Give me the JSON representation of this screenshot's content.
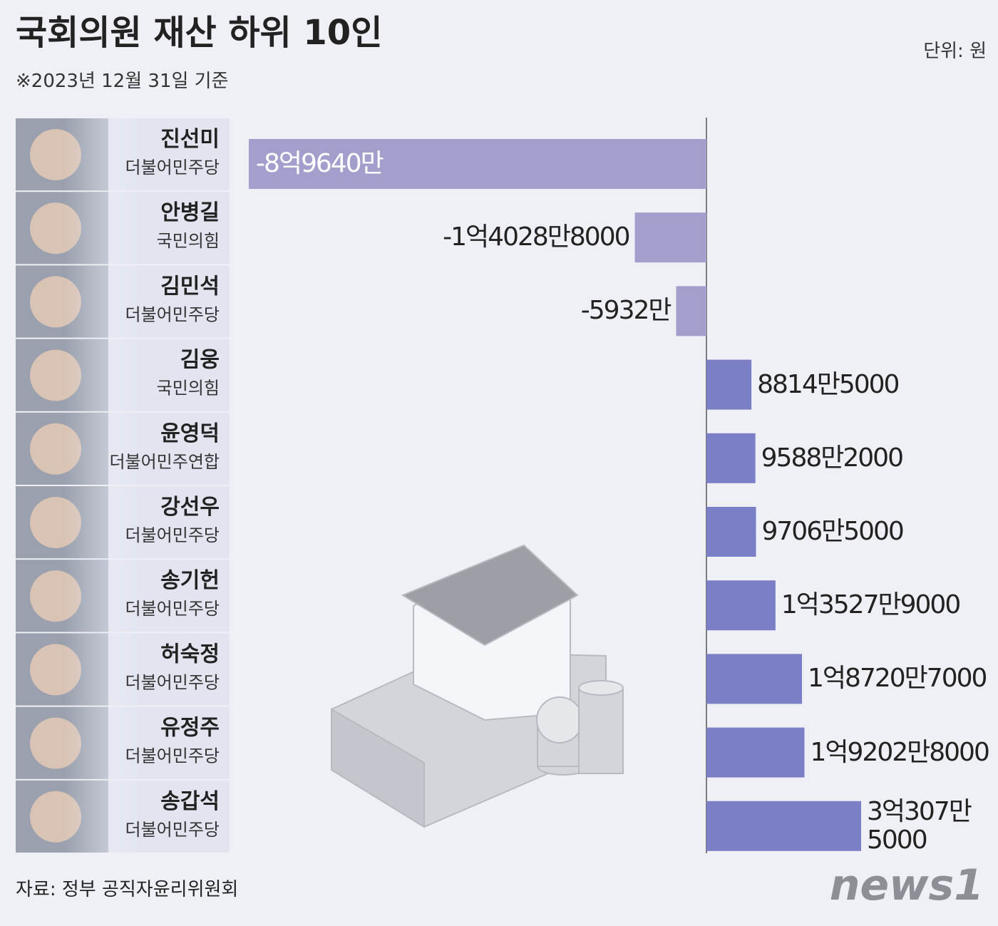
{
  "chart_data": {
    "type": "bar",
    "orientation": "horizontal",
    "title": "국회의원 재산 하위 10인",
    "subtitle": "※2023년 12월 31일 기준",
    "unit": "단위: 원",
    "source": "자료: 정부 공직자윤리위원회",
    "categories": [
      "진선미",
      "안병길",
      "김민석",
      "김웅",
      "윤영덕",
      "강선우",
      "송기헌",
      "허숙정",
      "유정주",
      "송갑석"
    ],
    "parties": [
      "더불어민주당",
      "국민의힘",
      "더불어민주당",
      "국민의힘",
      "더불어민주연합",
      "더불어민주당",
      "더불어민주당",
      "더불어민주당",
      "더불어민주당",
      "더불어민주당"
    ],
    "values": [
      -896400000,
      -140288000,
      -59320000,
      88145000,
      95882000,
      97065000,
      135279000,
      187207000,
      192028000,
      303075000
    ],
    "value_labels": [
      "-8억9640만",
      "-1억4028만8000",
      "-5932만",
      "8814만5000",
      "9588만2000",
      "9706만5000",
      "1억3527만9000",
      "1억8720만7000",
      "1억9202만8000",
      "3억307만5000"
    ],
    "colors": {
      "negative": "#a29fcd",
      "positive": "#7b7fc6"
    }
  },
  "logo": "news1"
}
